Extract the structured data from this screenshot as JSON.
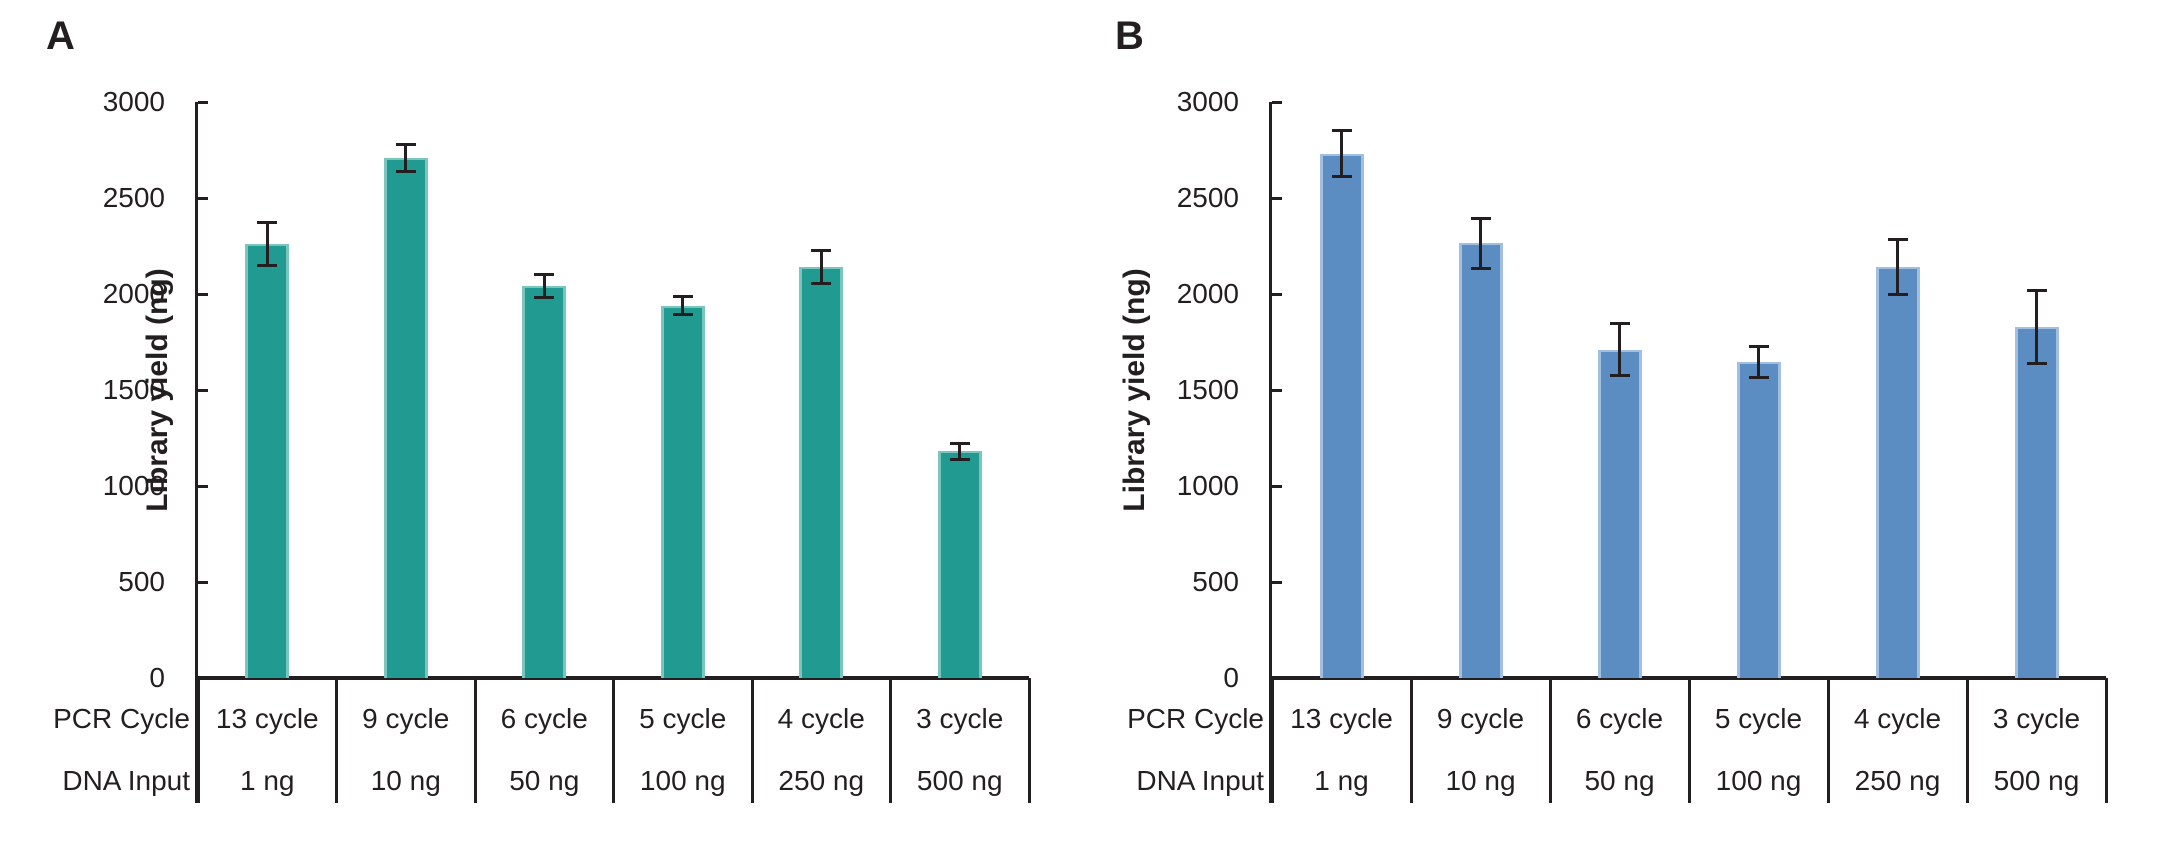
{
  "figure_title": "",
  "chart_data": [
    {
      "type": "bar",
      "panel_label": "A",
      "title": "",
      "xlabel": "",
      "ylabel": "Library yield (ng)",
      "ylim": [
        0,
        3000
      ],
      "yticks": [
        0,
        500,
        1000,
        1500,
        2000,
        2500,
        3000
      ],
      "grid": false,
      "legend": null,
      "categories": [
        "13 cycle",
        "9 cycle",
        "6 cycle",
        "5 cycle",
        "4 cycle",
        "3 cycle"
      ],
      "x_rows": [
        {
          "header": "PCR Cycle",
          "cells": [
            "13 cycle",
            "9 cycle",
            "6 cycle",
            "5 cycle",
            "4 cycle",
            "3 cycle"
          ]
        },
        {
          "header": "DNA Input",
          "cells": [
            "1 ng",
            "10 ng",
            "50 ng",
            "100 ng",
            "250 ng",
            "500 ng"
          ]
        }
      ],
      "series": [
        {
          "name": "Library yield",
          "values": [
            2260,
            2710,
            2040,
            1940,
            2140,
            1180
          ],
          "errors": [
            110,
            70,
            60,
            45,
            85,
            40
          ]
        }
      ],
      "bar_color": "#219a92",
      "bar_edge_color": "#7cc5bf",
      "error_color": "#231f20",
      "axis_color": "#231f20"
    },
    {
      "type": "bar",
      "panel_label": "B",
      "title": "",
      "xlabel": "",
      "ylabel": "Library yield (ng)",
      "ylim": [
        0,
        3000
      ],
      "yticks": [
        0,
        500,
        1000,
        1500,
        2000,
        2500,
        3000
      ],
      "grid": false,
      "legend": null,
      "categories": [
        "13 cycle",
        "9 cycle",
        "6 cycle",
        "5 cycle",
        "4 cycle",
        "3 cycle"
      ],
      "x_rows": [
        {
          "header": "PCR Cycle",
          "cells": [
            "13 cycle",
            "9 cycle",
            "6 cycle",
            "5 cycle",
            "4 cycle",
            "3 cycle"
          ]
        },
        {
          "header": "DNA Input",
          "cells": [
            "1 ng",
            "10 ng",
            "50 ng",
            "100 ng",
            "250 ng",
            "500 ng"
          ]
        }
      ],
      "series": [
        {
          "name": "Library yield",
          "values": [
            2730,
            2265,
            1710,
            1645,
            2140,
            1830
          ],
          "errors": [
            120,
            130,
            135,
            80,
            145,
            190
          ]
        }
      ],
      "bar_color": "#5b8dc2",
      "bar_edge_color": "#a3bfdf",
      "error_color": "#231f20",
      "axis_color": "#231f20"
    }
  ]
}
